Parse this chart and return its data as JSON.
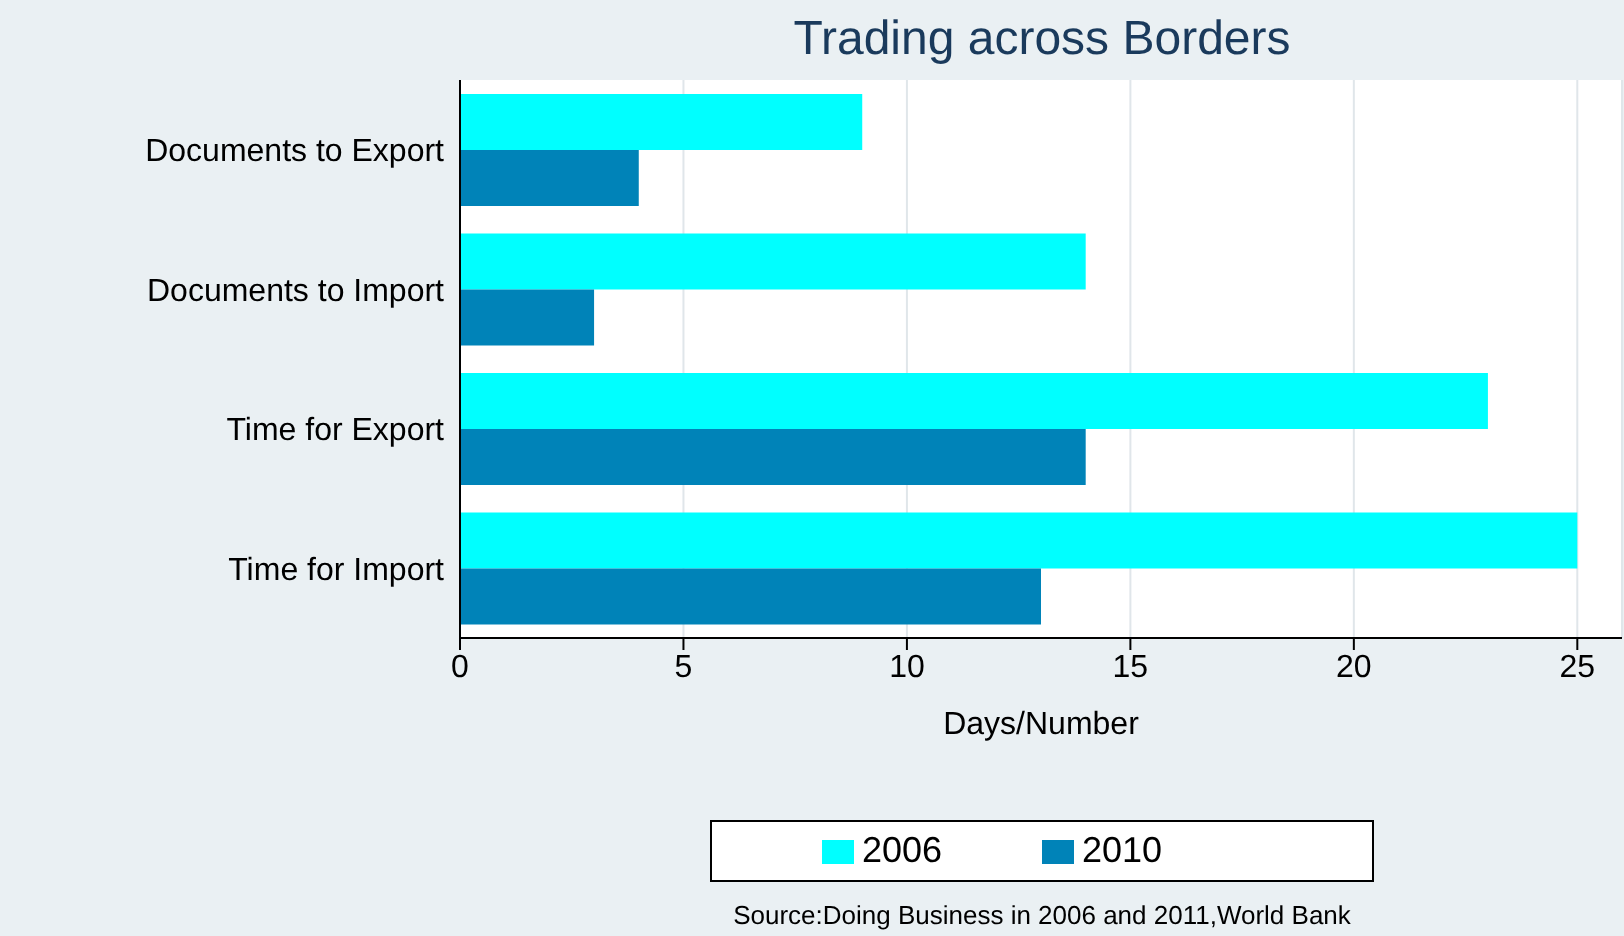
{
  "chart_data": {
    "type": "bar",
    "orientation": "horizontal",
    "title": "Trading across Borders",
    "xlabel": "Days/Number",
    "categories": [
      "Documents to Export",
      "Documents to Import",
      "Time for Export",
      "Time for Import"
    ],
    "series": [
      {
        "name": "2006",
        "color": "#00ffff",
        "values": [
          9,
          14,
          23,
          25
        ]
      },
      {
        "name": "2010",
        "color": "#0083b8",
        "values": [
          4,
          3,
          14,
          13
        ]
      }
    ],
    "xlim": [
      0,
      26
    ],
    "xticks": [
      0,
      5,
      10,
      15,
      20,
      25
    ],
    "grid": "x",
    "legend": "bottom",
    "annotations": [
      "Source:Doing Business in 2006 and 2011,World Bank"
    ]
  }
}
